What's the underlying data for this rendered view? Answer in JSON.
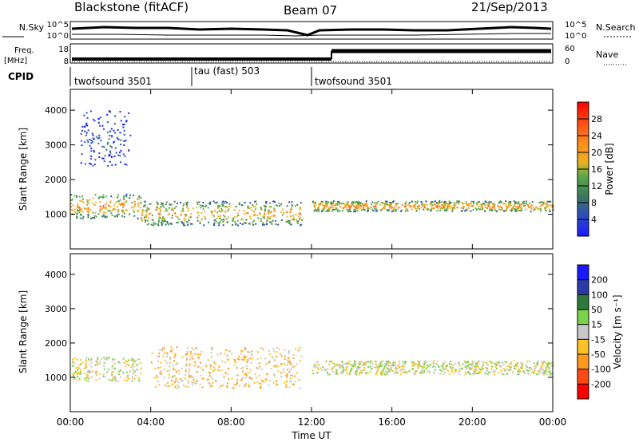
{
  "header": {
    "station": "Blackstone (fitACF)",
    "beam": "Beam 07",
    "date": "21/Sep/2013"
  },
  "top_strip": {
    "left_label": "N.Sky",
    "right_label": "N.Search",
    "left_ticks": [
      "10^5",
      "10^0"
    ],
    "right_ticks": [
      "10^5",
      "10^0"
    ]
  },
  "freq_strip": {
    "left_label_line1": "Freq.",
    "left_label_line2": "[MHz]",
    "right_label": "Nave",
    "left_ticks": [
      "18",
      "8"
    ],
    "right_ticks": [
      "60",
      "0"
    ]
  },
  "cpid_strip": {
    "label": "CPID",
    "segments": [
      {
        "label": "twofsound 3501",
        "start_hour": 0,
        "end_hour": 6
      },
      {
        "label": "tau (fast) 503",
        "start_hour": 6,
        "end_hour": 12
      },
      {
        "label": "twofsound 3501",
        "start_hour": 12,
        "end_hour": 24
      }
    ]
  },
  "colors": {
    "power": [
      "#1a1aff",
      "#2b48c8",
      "#3a7a5a",
      "#5da84a",
      "#e8b21e",
      "#ff8a1e",
      "#ff4a14",
      "#ff0000"
    ],
    "velocity": [
      "#ff0000",
      "#ff4a14",
      "#ff9a1e",
      "#ffc227",
      "#c8c8c8",
      "#7ad24a",
      "#2e7a3c",
      "#2b3aa8",
      "#1a1aff"
    ],
    "panel_border": "#000000"
  },
  "chart_data": [
    {
      "type": "heatmap",
      "title": "",
      "xlabel": "Time UT",
      "ylabel": "Slant Range [km]",
      "xlim_hours": [
        0,
        24
      ],
      "ylim_km": [
        0,
        4600
      ],
      "x_tick_labels": [
        "00:00",
        "04:00",
        "08:00",
        "12:00",
        "16:00",
        "20:00",
        "00:00"
      ],
      "x_tick_hours": [
        0,
        4,
        8,
        12,
        16,
        20,
        24
      ],
      "y_tick_values": [
        1000,
        2000,
        3000,
        4000
      ],
      "y_tick_labels": [
        "1000",
        "2000",
        "3000",
        "4000"
      ],
      "colorbar": {
        "label": "Power [dB]",
        "tick_values": [
          4,
          8,
          12,
          16,
          20,
          24,
          28
        ],
        "tick_labels": [
          "4",
          "8",
          "12",
          "16",
          "20",
          "24",
          "28"
        ],
        "range": [
          0,
          32
        ]
      },
      "echo_bands": [
        {
          "start_hour": 0.0,
          "end_hour": 3.5,
          "range_start_km": 900,
          "range_end_km": 1600,
          "peak_db": 26
        },
        {
          "start_hour": 3.5,
          "end_hour": 11.5,
          "range_start_km": 700,
          "range_end_km": 1400,
          "peak_db": 24
        },
        {
          "start_hour": 12.0,
          "end_hour": 24.0,
          "range_start_km": 1100,
          "range_end_km": 1400,
          "peak_db": 26
        },
        {
          "start_hour": 0.5,
          "end_hour": 3.0,
          "range_start_km": 2400,
          "range_end_km": 4000,
          "peak_db": 8
        }
      ]
    },
    {
      "type": "heatmap",
      "title": "",
      "xlabel": "Time UT",
      "ylabel": "Slant Range [km]",
      "xlim_hours": [
        0,
        24
      ],
      "ylim_km": [
        0,
        4600
      ],
      "x_tick_labels": [
        "00:00",
        "04:00",
        "08:00",
        "12:00",
        "16:00",
        "20:00",
        "00:00"
      ],
      "x_tick_hours": [
        0,
        4,
        8,
        12,
        16,
        20,
        24
      ],
      "y_tick_values": [
        1000,
        2000,
        3000,
        4000
      ],
      "y_tick_labels": [
        "1000",
        "2000",
        "3000",
        "4000"
      ],
      "colorbar": {
        "label": "Velocity [m s⁻¹]",
        "tick_values": [
          -200,
          -100,
          -50,
          -15,
          15,
          50,
          100,
          200
        ],
        "tick_labels": [
          "-200",
          "-100",
          "-50",
          "-15",
          "15",
          "50",
          "100",
          "200"
        ]
      },
      "echo_bands": [
        {
          "start_hour": 0.0,
          "end_hour": 3.5,
          "range_start_km": 900,
          "range_end_km": 1600,
          "velocity": 0
        },
        {
          "start_hour": 4.0,
          "end_hour": 11.5,
          "range_start_km": 700,
          "range_end_km": 1900,
          "velocity": -60
        },
        {
          "start_hour": 12.0,
          "end_hour": 24.0,
          "range_start_km": 1100,
          "range_end_km": 1500,
          "velocity": 0
        }
      ]
    }
  ]
}
